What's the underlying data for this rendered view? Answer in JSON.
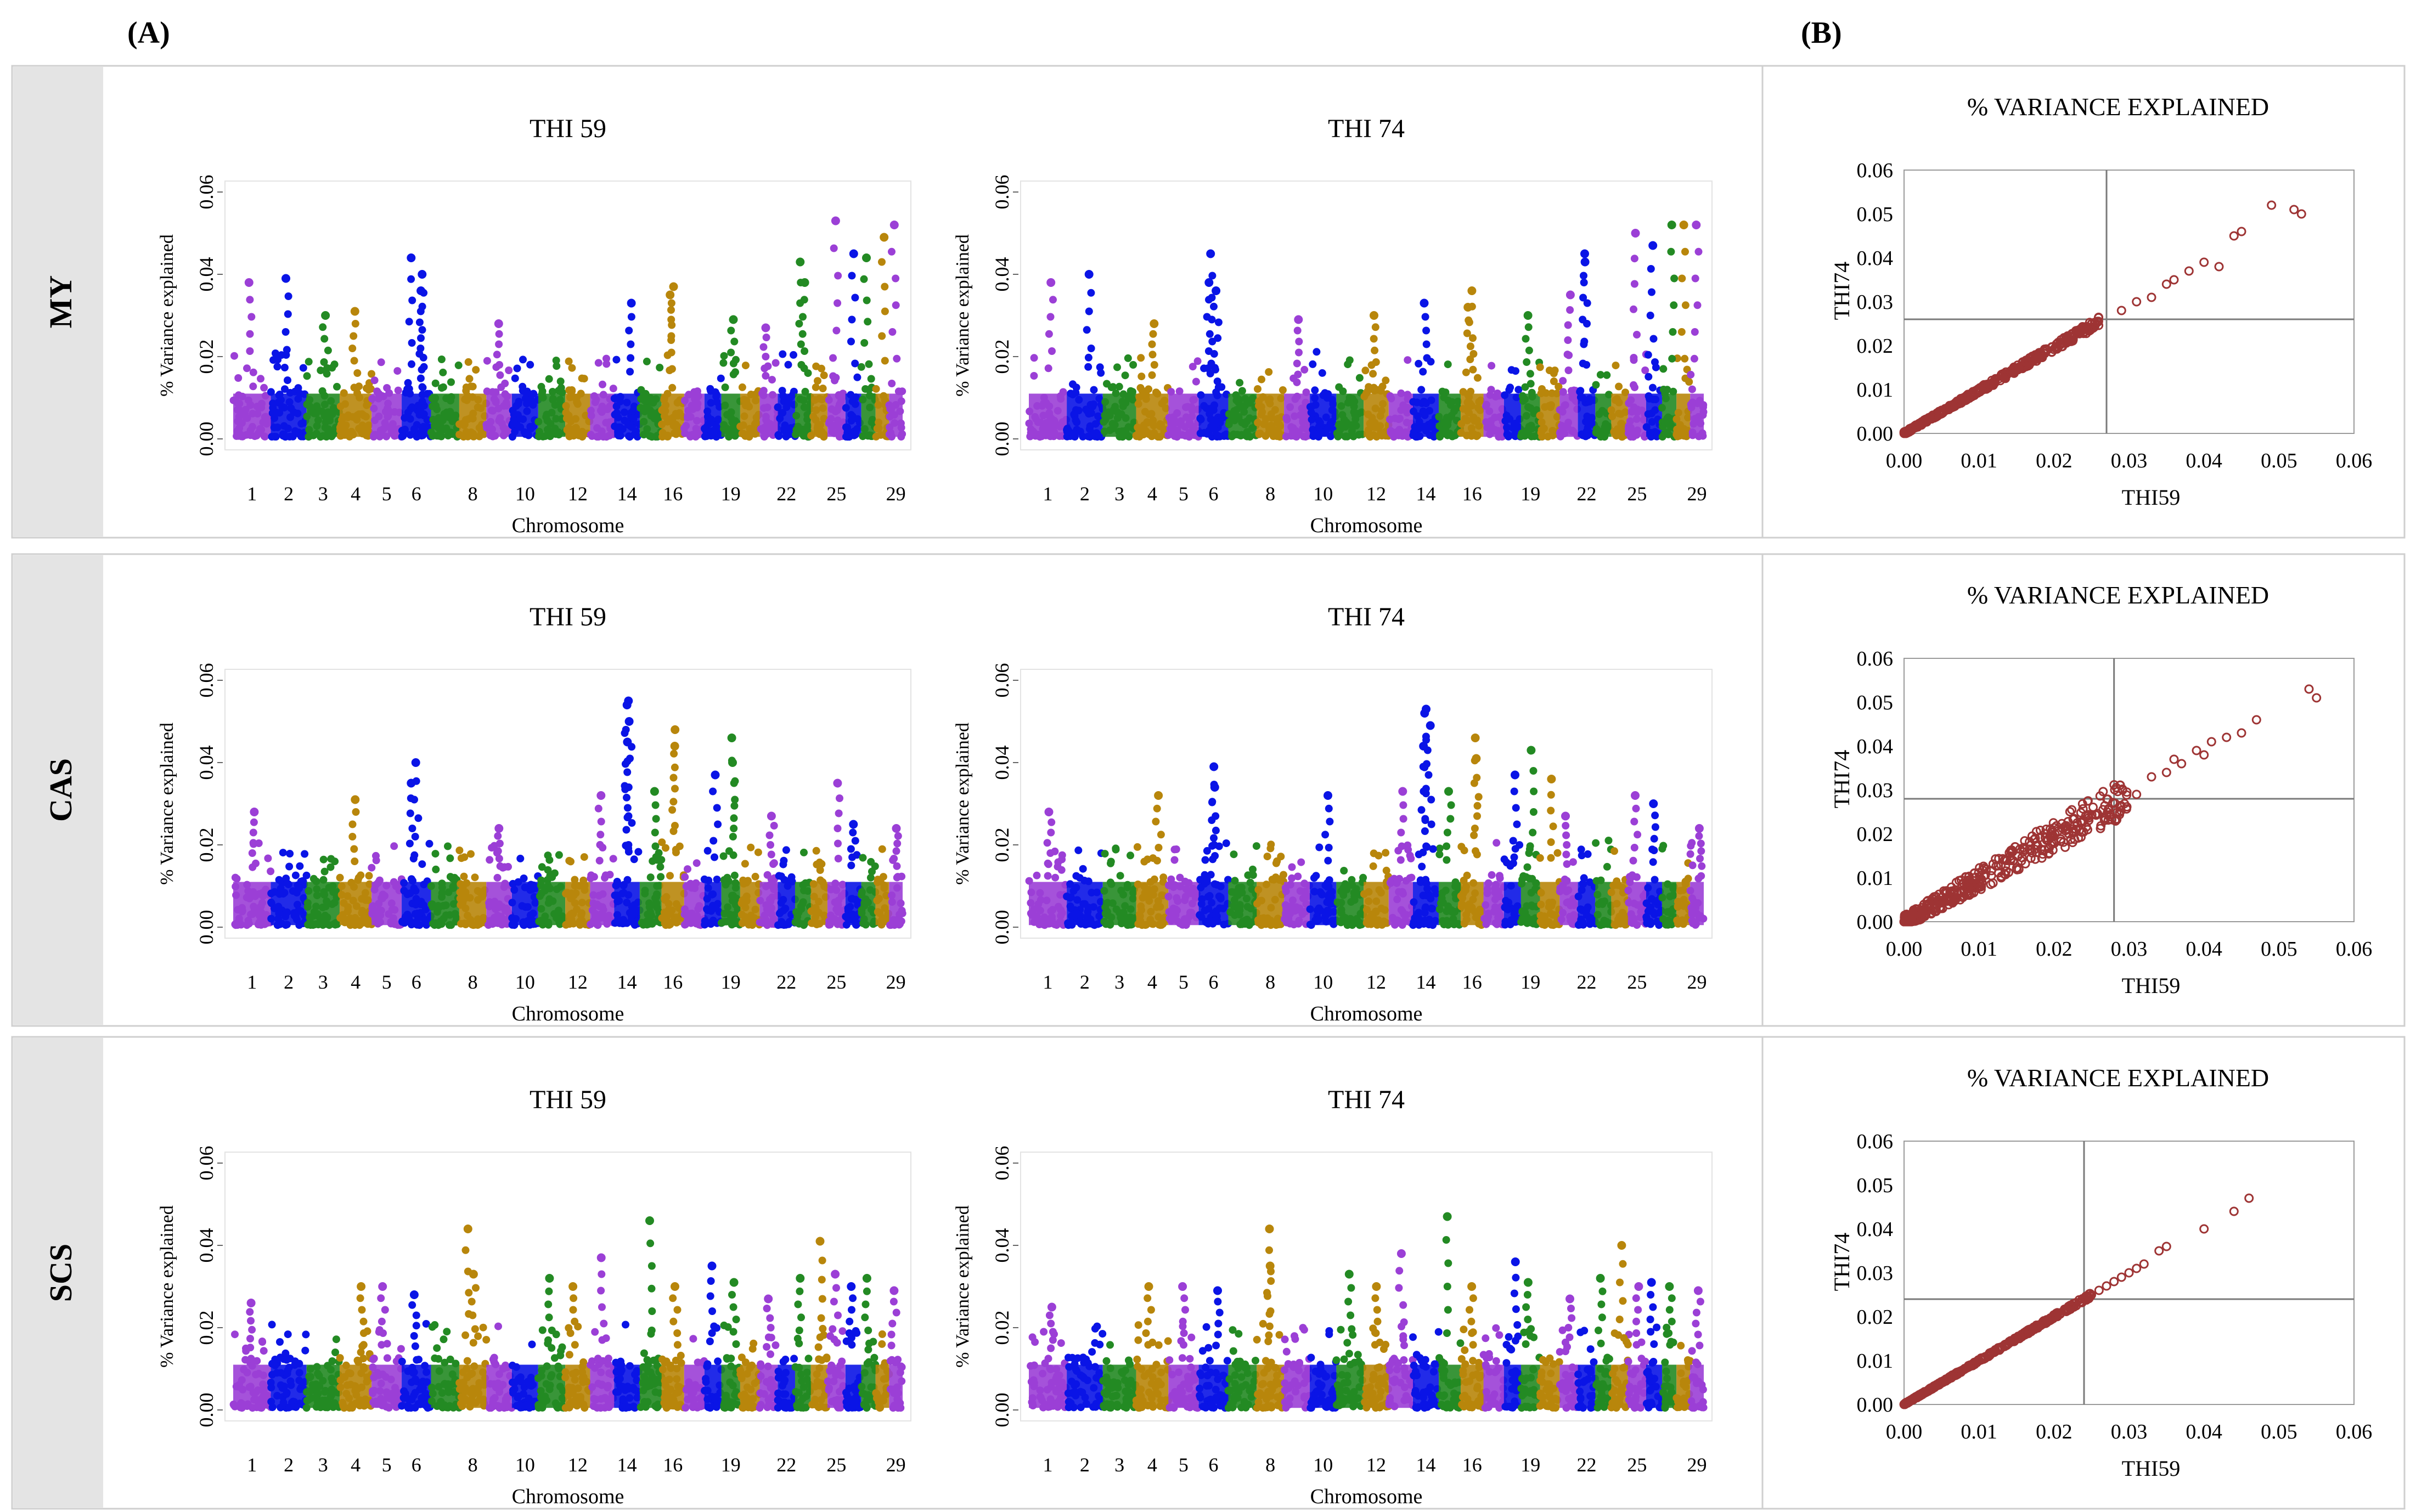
{
  "panel_labels": {
    "a": "(A)",
    "b": "(B)"
  },
  "rows": [
    {
      "trait": "MY",
      "manhattan_left_title": "THI 59",
      "manhattan_right_title": "THI 74",
      "scatter_title": "% VARIANCE EXPLAINED"
    },
    {
      "trait": "CAS",
      "manhattan_left_title": "THI 59",
      "manhattan_right_title": "THI 74",
      "scatter_title": "% VARIANCE EXPLAINED"
    },
    {
      "trait": "SCS",
      "manhattan_left_title": "THI 59",
      "manhattan_right_title": "THI 74",
      "scatter_title": "% VARIANCE EXPLAINED"
    }
  ],
  "colors": {
    "chromosome_palette": [
      "#9b3fd6",
      "#0a14e6",
      "#238a23",
      "#b8860b"
    ],
    "scatter_marker": "#9e3434",
    "panel_border": "#cfcfcf",
    "label_band": "#e4e4e4"
  },
  "chart_data": [
    {
      "type": "scatter",
      "subtype": "manhattan",
      "id": "my_thi59",
      "title": "THI 59",
      "xlabel": "Chromosome",
      "ylabel": "% Variance explained",
      "ylim": [
        0,
        0.06
      ],
      "yticks": [
        "0.00",
        "0.02",
        "0.04",
        "0.06"
      ],
      "xticks": [
        "1",
        "2",
        "3",
        "4",
        "5",
        "6",
        "8",
        "10",
        "12",
        "14",
        "16",
        "19",
        "22",
        "25",
        "29"
      ],
      "peaks": [
        [
          1,
          0.038
        ],
        [
          2,
          0.039
        ],
        [
          3,
          0.03
        ],
        [
          4,
          0.031
        ],
        [
          6,
          0.04
        ],
        [
          6,
          0.044
        ],
        [
          6,
          0.036
        ],
        [
          9,
          0.028
        ],
        [
          14,
          0.033
        ],
        [
          16,
          0.037
        ],
        [
          16,
          0.035
        ],
        [
          19,
          0.029
        ],
        [
          21,
          0.027
        ],
        [
          23,
          0.043
        ],
        [
          23,
          0.038
        ],
        [
          25,
          0.053
        ],
        [
          26,
          0.045
        ],
        [
          27,
          0.044
        ],
        [
          28,
          0.049
        ],
        [
          29,
          0.052
        ]
      ]
    },
    {
      "type": "scatter",
      "subtype": "manhattan",
      "id": "my_thi74",
      "title": "THI 74",
      "xlabel": "Chromosome",
      "ylabel": "% Variance explained",
      "ylim": [
        0,
        0.06
      ],
      "yticks": [
        "0.00",
        "0.02",
        "0.04",
        "0.06"
      ],
      "xticks": [
        "1",
        "2",
        "3",
        "4",
        "5",
        "6",
        "8",
        "10",
        "12",
        "14",
        "16",
        "19",
        "22",
        "25",
        "29"
      ],
      "peaks": [
        [
          1,
          0.038
        ],
        [
          2,
          0.04
        ],
        [
          4,
          0.028
        ],
        [
          6,
          0.038
        ],
        [
          6,
          0.045
        ],
        [
          6,
          0.036
        ],
        [
          9,
          0.029
        ],
        [
          12,
          0.03
        ],
        [
          14,
          0.033
        ],
        [
          16,
          0.036
        ],
        [
          16,
          0.032
        ],
        [
          19,
          0.03
        ],
        [
          21,
          0.035
        ],
        [
          22,
          0.045
        ],
        [
          22,
          0.043
        ],
        [
          25,
          0.05
        ],
        [
          26,
          0.047
        ],
        [
          27,
          0.052
        ],
        [
          28,
          0.052
        ],
        [
          29,
          0.052
        ]
      ]
    },
    {
      "type": "scatter",
      "id": "my_scatter",
      "title": "% VARIANCE EXPLAINED",
      "xlabel": "THI59",
      "ylabel": "THI74",
      "xlim": [
        0,
        0.06
      ],
      "ylim": [
        0,
        0.06
      ],
      "xticks": [
        "0.00",
        "0.01",
        "0.02",
        "0.03",
        "0.04",
        "0.05",
        "0.06"
      ],
      "yticks": [
        "0.00",
        "0.01",
        "0.02",
        "0.03",
        "0.04",
        "0.05",
        "0.06"
      ],
      "reference_lines": {
        "x": 0.027,
        "y": 0.026
      },
      "trend": {
        "slope": 0.98,
        "spread": 0.0008,
        "max_x": 0.026
      },
      "outliers": [
        [
          0.029,
          0.028
        ],
        [
          0.031,
          0.03
        ],
        [
          0.033,
          0.031
        ],
        [
          0.035,
          0.034
        ],
        [
          0.036,
          0.035
        ],
        [
          0.038,
          0.037
        ],
        [
          0.04,
          0.039
        ],
        [
          0.042,
          0.038
        ],
        [
          0.044,
          0.045
        ],
        [
          0.045,
          0.046
        ],
        [
          0.049,
          0.052
        ],
        [
          0.052,
          0.051
        ],
        [
          0.053,
          0.05
        ]
      ]
    },
    {
      "type": "scatter",
      "subtype": "manhattan",
      "id": "cas_thi59",
      "title": "THI 59",
      "xlabel": "Chromosome",
      "ylabel": "% Variance explained",
      "ylim": [
        0,
        0.06
      ],
      "yticks": [
        "0.00",
        "0.02",
        "0.04",
        "0.06"
      ],
      "xticks": [
        "1",
        "2",
        "3",
        "4",
        "5",
        "6",
        "8",
        "10",
        "12",
        "14",
        "16",
        "19",
        "22",
        "25",
        "29"
      ],
      "peaks": [
        [
          1,
          0.028
        ],
        [
          4,
          0.031
        ],
        [
          6,
          0.04
        ],
        [
          6,
          0.035
        ],
        [
          9,
          0.024
        ],
        [
          13,
          0.032
        ],
        [
          14,
          0.055
        ],
        [
          14,
          0.054
        ],
        [
          14,
          0.05
        ],
        [
          14,
          0.045
        ],
        [
          15,
          0.033
        ],
        [
          16,
          0.048
        ],
        [
          16,
          0.044
        ],
        [
          18,
          0.037
        ],
        [
          19,
          0.046
        ],
        [
          19,
          0.04
        ],
        [
          21,
          0.027
        ],
        [
          25,
          0.035
        ],
        [
          26,
          0.025
        ],
        [
          29,
          0.024
        ]
      ]
    },
    {
      "type": "scatter",
      "subtype": "manhattan",
      "id": "cas_thi74",
      "title": "THI 74",
      "xlabel": "Chromosome",
      "ylabel": "% Variance explained",
      "ylim": [
        0,
        0.06
      ],
      "yticks": [
        "0.00",
        "0.02",
        "0.04",
        "0.06"
      ],
      "xticks": [
        "1",
        "2",
        "3",
        "4",
        "5",
        "6",
        "8",
        "10",
        "12",
        "14",
        "16",
        "19",
        "22",
        "25",
        "29"
      ],
      "peaks": [
        [
          1,
          0.028
        ],
        [
          4,
          0.032
        ],
        [
          6,
          0.039
        ],
        [
          6,
          0.034
        ],
        [
          10,
          0.032
        ],
        [
          13,
          0.033
        ],
        [
          14,
          0.053
        ],
        [
          14,
          0.052
        ],
        [
          14,
          0.049
        ],
        [
          14,
          0.044
        ],
        [
          15,
          0.033
        ],
        [
          16,
          0.046
        ],
        [
          16,
          0.041
        ],
        [
          18,
          0.037
        ],
        [
          19,
          0.043
        ],
        [
          20,
          0.036
        ],
        [
          21,
          0.027
        ],
        [
          25,
          0.032
        ],
        [
          26,
          0.03
        ],
        [
          29,
          0.024
        ]
      ]
    },
    {
      "type": "scatter",
      "id": "cas_scatter",
      "title": "% VARIANCE EXPLAINED",
      "xlabel": "THI59",
      "ylabel": "THI74",
      "xlim": [
        0,
        0.06
      ],
      "ylim": [
        0,
        0.06
      ],
      "xticks": [
        "0.00",
        "0.01",
        "0.02",
        "0.03",
        "0.04",
        "0.05",
        "0.06"
      ],
      "yticks": [
        "0.00",
        "0.01",
        "0.02",
        "0.03",
        "0.04",
        "0.05",
        "0.06"
      ],
      "reference_lines": {
        "x": 0.028,
        "y": 0.028
      },
      "trend": {
        "slope": 0.97,
        "spread": 0.0035,
        "max_x": 0.03
      },
      "outliers": [
        [
          0.031,
          0.029
        ],
        [
          0.033,
          0.033
        ],
        [
          0.035,
          0.034
        ],
        [
          0.036,
          0.037
        ],
        [
          0.037,
          0.036
        ],
        [
          0.039,
          0.039
        ],
        [
          0.04,
          0.038
        ],
        [
          0.041,
          0.041
        ],
        [
          0.043,
          0.042
        ],
        [
          0.045,
          0.043
        ],
        [
          0.047,
          0.046
        ],
        [
          0.054,
          0.053
        ],
        [
          0.055,
          0.051
        ]
      ]
    },
    {
      "type": "scatter",
      "subtype": "manhattan",
      "id": "scs_thi59",
      "title": "THI 59",
      "xlabel": "Chromosome",
      "ylabel": "% Variance explained",
      "ylim": [
        0,
        0.06
      ],
      "yticks": [
        "0.00",
        "0.02",
        "0.04",
        "0.06"
      ],
      "xticks": [
        "1",
        "2",
        "3",
        "4",
        "5",
        "6",
        "8",
        "10",
        "12",
        "14",
        "16",
        "19",
        "22",
        "25",
        "29"
      ],
      "peaks": [
        [
          1,
          0.026
        ],
        [
          4,
          0.03
        ],
        [
          5,
          0.03
        ],
        [
          6,
          0.028
        ],
        [
          8,
          0.044
        ],
        [
          8,
          0.033
        ],
        [
          11,
          0.032
        ],
        [
          12,
          0.03
        ],
        [
          13,
          0.037
        ],
        [
          15,
          0.046
        ],
        [
          16,
          0.03
        ],
        [
          18,
          0.035
        ],
        [
          19,
          0.031
        ],
        [
          21,
          0.027
        ],
        [
          23,
          0.032
        ],
        [
          24,
          0.041
        ],
        [
          25,
          0.033
        ],
        [
          26,
          0.03
        ],
        [
          27,
          0.032
        ],
        [
          29,
          0.029
        ]
      ]
    },
    {
      "type": "scatter",
      "subtype": "manhattan",
      "id": "scs_thi74",
      "title": "THI 74",
      "xlabel": "Chromosome",
      "ylabel": "% Variance explained",
      "ylim": [
        0,
        0.06
      ],
      "yticks": [
        "0.00",
        "0.02",
        "0.04",
        "0.06"
      ],
      "xticks": [
        "1",
        "2",
        "3",
        "4",
        "5",
        "6",
        "8",
        "10",
        "12",
        "14",
        "16",
        "19",
        "22",
        "25",
        "29"
      ],
      "peaks": [
        [
          1,
          0.025
        ],
        [
          4,
          0.03
        ],
        [
          5,
          0.03
        ],
        [
          6,
          0.029
        ],
        [
          8,
          0.044
        ],
        [
          8,
          0.035
        ],
        [
          11,
          0.033
        ],
        [
          12,
          0.03
        ],
        [
          13,
          0.038
        ],
        [
          15,
          0.047
        ],
        [
          16,
          0.03
        ],
        [
          18,
          0.036
        ],
        [
          19,
          0.031
        ],
        [
          21,
          0.027
        ],
        [
          23,
          0.032
        ],
        [
          24,
          0.04
        ],
        [
          25,
          0.03
        ],
        [
          26,
          0.031
        ],
        [
          27,
          0.03
        ],
        [
          29,
          0.029
        ]
      ]
    },
    {
      "type": "scatter",
      "id": "scs_scatter",
      "title": "% VARIANCE EXPLAINED",
      "xlabel": "THI59",
      "ylabel": "THI74",
      "xlim": [
        0,
        0.06
      ],
      "ylim": [
        0,
        0.06
      ],
      "xticks": [
        "0.00",
        "0.01",
        "0.02",
        "0.03",
        "0.04",
        "0.05",
        "0.06"
      ],
      "yticks": [
        "0.00",
        "0.01",
        "0.02",
        "0.03",
        "0.04",
        "0.05",
        "0.06"
      ],
      "reference_lines": {
        "x": 0.024,
        "y": 0.024
      },
      "trend": {
        "slope": 1.0,
        "spread": 0.0004,
        "max_x": 0.025
      },
      "outliers": [
        [
          0.026,
          0.026
        ],
        [
          0.027,
          0.027
        ],
        [
          0.028,
          0.028
        ],
        [
          0.029,
          0.029
        ],
        [
          0.03,
          0.03
        ],
        [
          0.031,
          0.031
        ],
        [
          0.032,
          0.032
        ],
        [
          0.034,
          0.035
        ],
        [
          0.035,
          0.036
        ],
        [
          0.04,
          0.04
        ],
        [
          0.044,
          0.044
        ],
        [
          0.046,
          0.047
        ]
      ]
    }
  ]
}
